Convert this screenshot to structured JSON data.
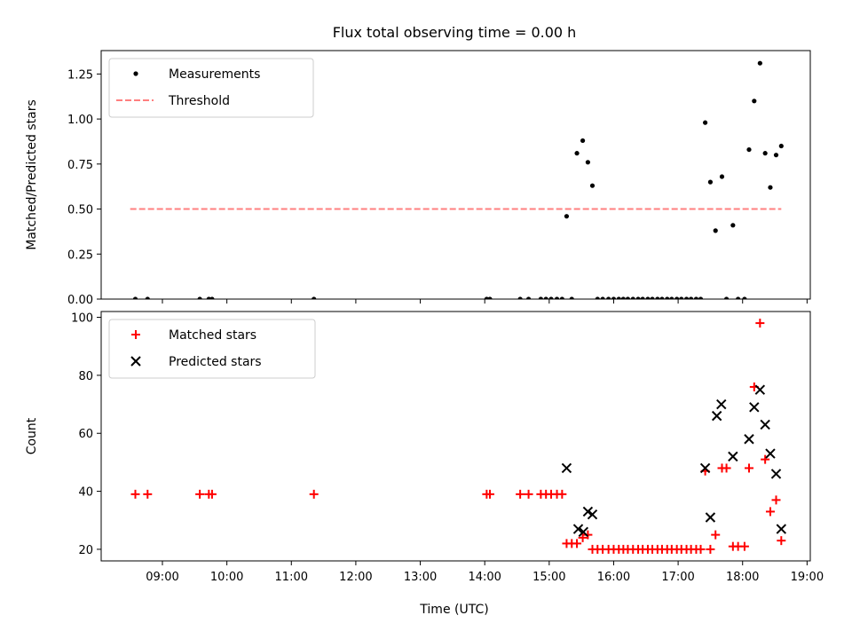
{
  "chart_data": {
    "title": "Flux total observing time = 0.00 h",
    "xlabel": "Time (UTC)",
    "xlim": [
      8.05,
      19.05
    ],
    "xticks": [
      9,
      10,
      11,
      12,
      13,
      14,
      15,
      16,
      17,
      18,
      19
    ],
    "xtick_labels": [
      "09:00",
      "10:00",
      "11:00",
      "12:00",
      "13:00",
      "14:00",
      "15:00",
      "16:00",
      "17:00",
      "18:00",
      "19:00"
    ],
    "panels": [
      {
        "type": "scatter",
        "ylabel": "Matched/Predicted stars",
        "ylim": [
          0,
          1.38
        ],
        "yticks": [
          0.0,
          0.25,
          0.5,
          0.75,
          1.0,
          1.25
        ],
        "ytick_labels": [
          "0.00",
          "0.25",
          "0.50",
          "0.75",
          "1.00",
          "1.25"
        ],
        "legend_position": "upper-left",
        "series": [
          {
            "name": "Measurements",
            "kind": "dot",
            "color": "#000000",
            "x": [
              8.58,
              8.77,
              9.58,
              9.72,
              9.77,
              11.35,
              14.03,
              14.08,
              14.55,
              14.68,
              14.87,
              14.95,
              15.03,
              15.12,
              15.2,
              15.27,
              15.35,
              15.43,
              15.52,
              15.6,
              15.67,
              15.75,
              15.83,
              15.92,
              16.0,
              16.08,
              16.15,
              16.22,
              16.3,
              16.38,
              16.45,
              16.53,
              16.6,
              16.68,
              16.75,
              16.83,
              16.9,
              16.98,
              17.05,
              17.13,
              17.2,
              17.28,
              17.35,
              17.42,
              17.5,
              17.58,
              17.68,
              17.75,
              17.85,
              17.93,
              18.03,
              18.1,
              18.18,
              18.27,
              18.35,
              18.43,
              18.52,
              18.6
            ],
            "y": [
              0,
              0,
              0,
              0,
              0,
              0,
              0,
              0,
              0,
              0,
              0,
              0,
              0,
              0,
              0,
              0.46,
              0,
              0.81,
              0.88,
              0.76,
              0.63,
              0,
              0,
              0,
              0,
              0,
              0,
              0,
              0,
              0,
              0,
              0,
              0,
              0,
              0,
              0,
              0,
              0,
              0,
              0,
              0,
              0,
              0,
              0.98,
              0.65,
              0.38,
              0.68,
              0,
              0.41,
              0,
              0,
              0.83,
              1.1,
              1.31,
              0.81,
              0.62,
              0.8,
              0.85
            ]
          },
          {
            "name": "Threshold",
            "kind": "dashed-line",
            "color": "#ff7f7f",
            "x": [
              8.5,
              18.6
            ],
            "y": [
              0.5,
              0.5
            ]
          }
        ]
      },
      {
        "type": "scatter",
        "ylabel": "Count",
        "ylim": [
          16,
          102
        ],
        "yticks": [
          20,
          40,
          60,
          80,
          100
        ],
        "ytick_labels": [
          "20",
          "40",
          "60",
          "80",
          "100"
        ],
        "legend_position": "upper-left",
        "series": [
          {
            "name": "Matched stars",
            "kind": "plus",
            "color": "#ff0000",
            "x": [
              8.58,
              8.77,
              9.58,
              9.72,
              9.77,
              11.35,
              14.03,
              14.08,
              14.55,
              14.68,
              14.87,
              14.95,
              15.03,
              15.12,
              15.2,
              15.27,
              15.35,
              15.43,
              15.52,
              15.6,
              15.67,
              15.75,
              15.83,
              15.92,
              16.0,
              16.08,
              16.15,
              16.22,
              16.3,
              16.38,
              16.45,
              16.53,
              16.6,
              16.68,
              16.75,
              16.83,
              16.9,
              16.98,
              17.05,
              17.13,
              17.2,
              17.28,
              17.35,
              17.42,
              17.5,
              17.58,
              17.68,
              17.75,
              17.85,
              17.93,
              18.03,
              18.1,
              18.18,
              18.27,
              18.35,
              18.43,
              18.52,
              18.6
            ],
            "y": [
              39,
              39,
              39,
              39,
              39,
              39,
              39,
              39,
              39,
              39,
              39,
              39,
              39,
              39,
              39,
              22,
              22,
              22,
              24,
              25,
              20,
              20,
              20,
              20,
              20,
              20,
              20,
              20,
              20,
              20,
              20,
              20,
              20,
              20,
              20,
              20,
              20,
              20,
              20,
              20,
              20,
              20,
              20,
              47,
              20,
              25,
              48,
              48,
              21,
              21,
              21,
              48,
              76,
              98,
              51,
              33,
              37,
              23
            ]
          },
          {
            "name": "Predicted stars",
            "kind": "x",
            "color": "#000000",
            "x": [
              15.27,
              15.45,
              15.53,
              15.6,
              15.67,
              17.42,
              17.5,
              17.6,
              17.67,
              17.85,
              18.1,
              18.18,
              18.27,
              18.35,
              18.43,
              18.52,
              18.6
            ],
            "y": [
              48,
              27,
              26,
              33,
              32,
              48,
              31,
              66,
              70,
              52,
              58,
              69,
              75,
              63,
              53,
              46,
              27
            ]
          }
        ]
      }
    ]
  }
}
